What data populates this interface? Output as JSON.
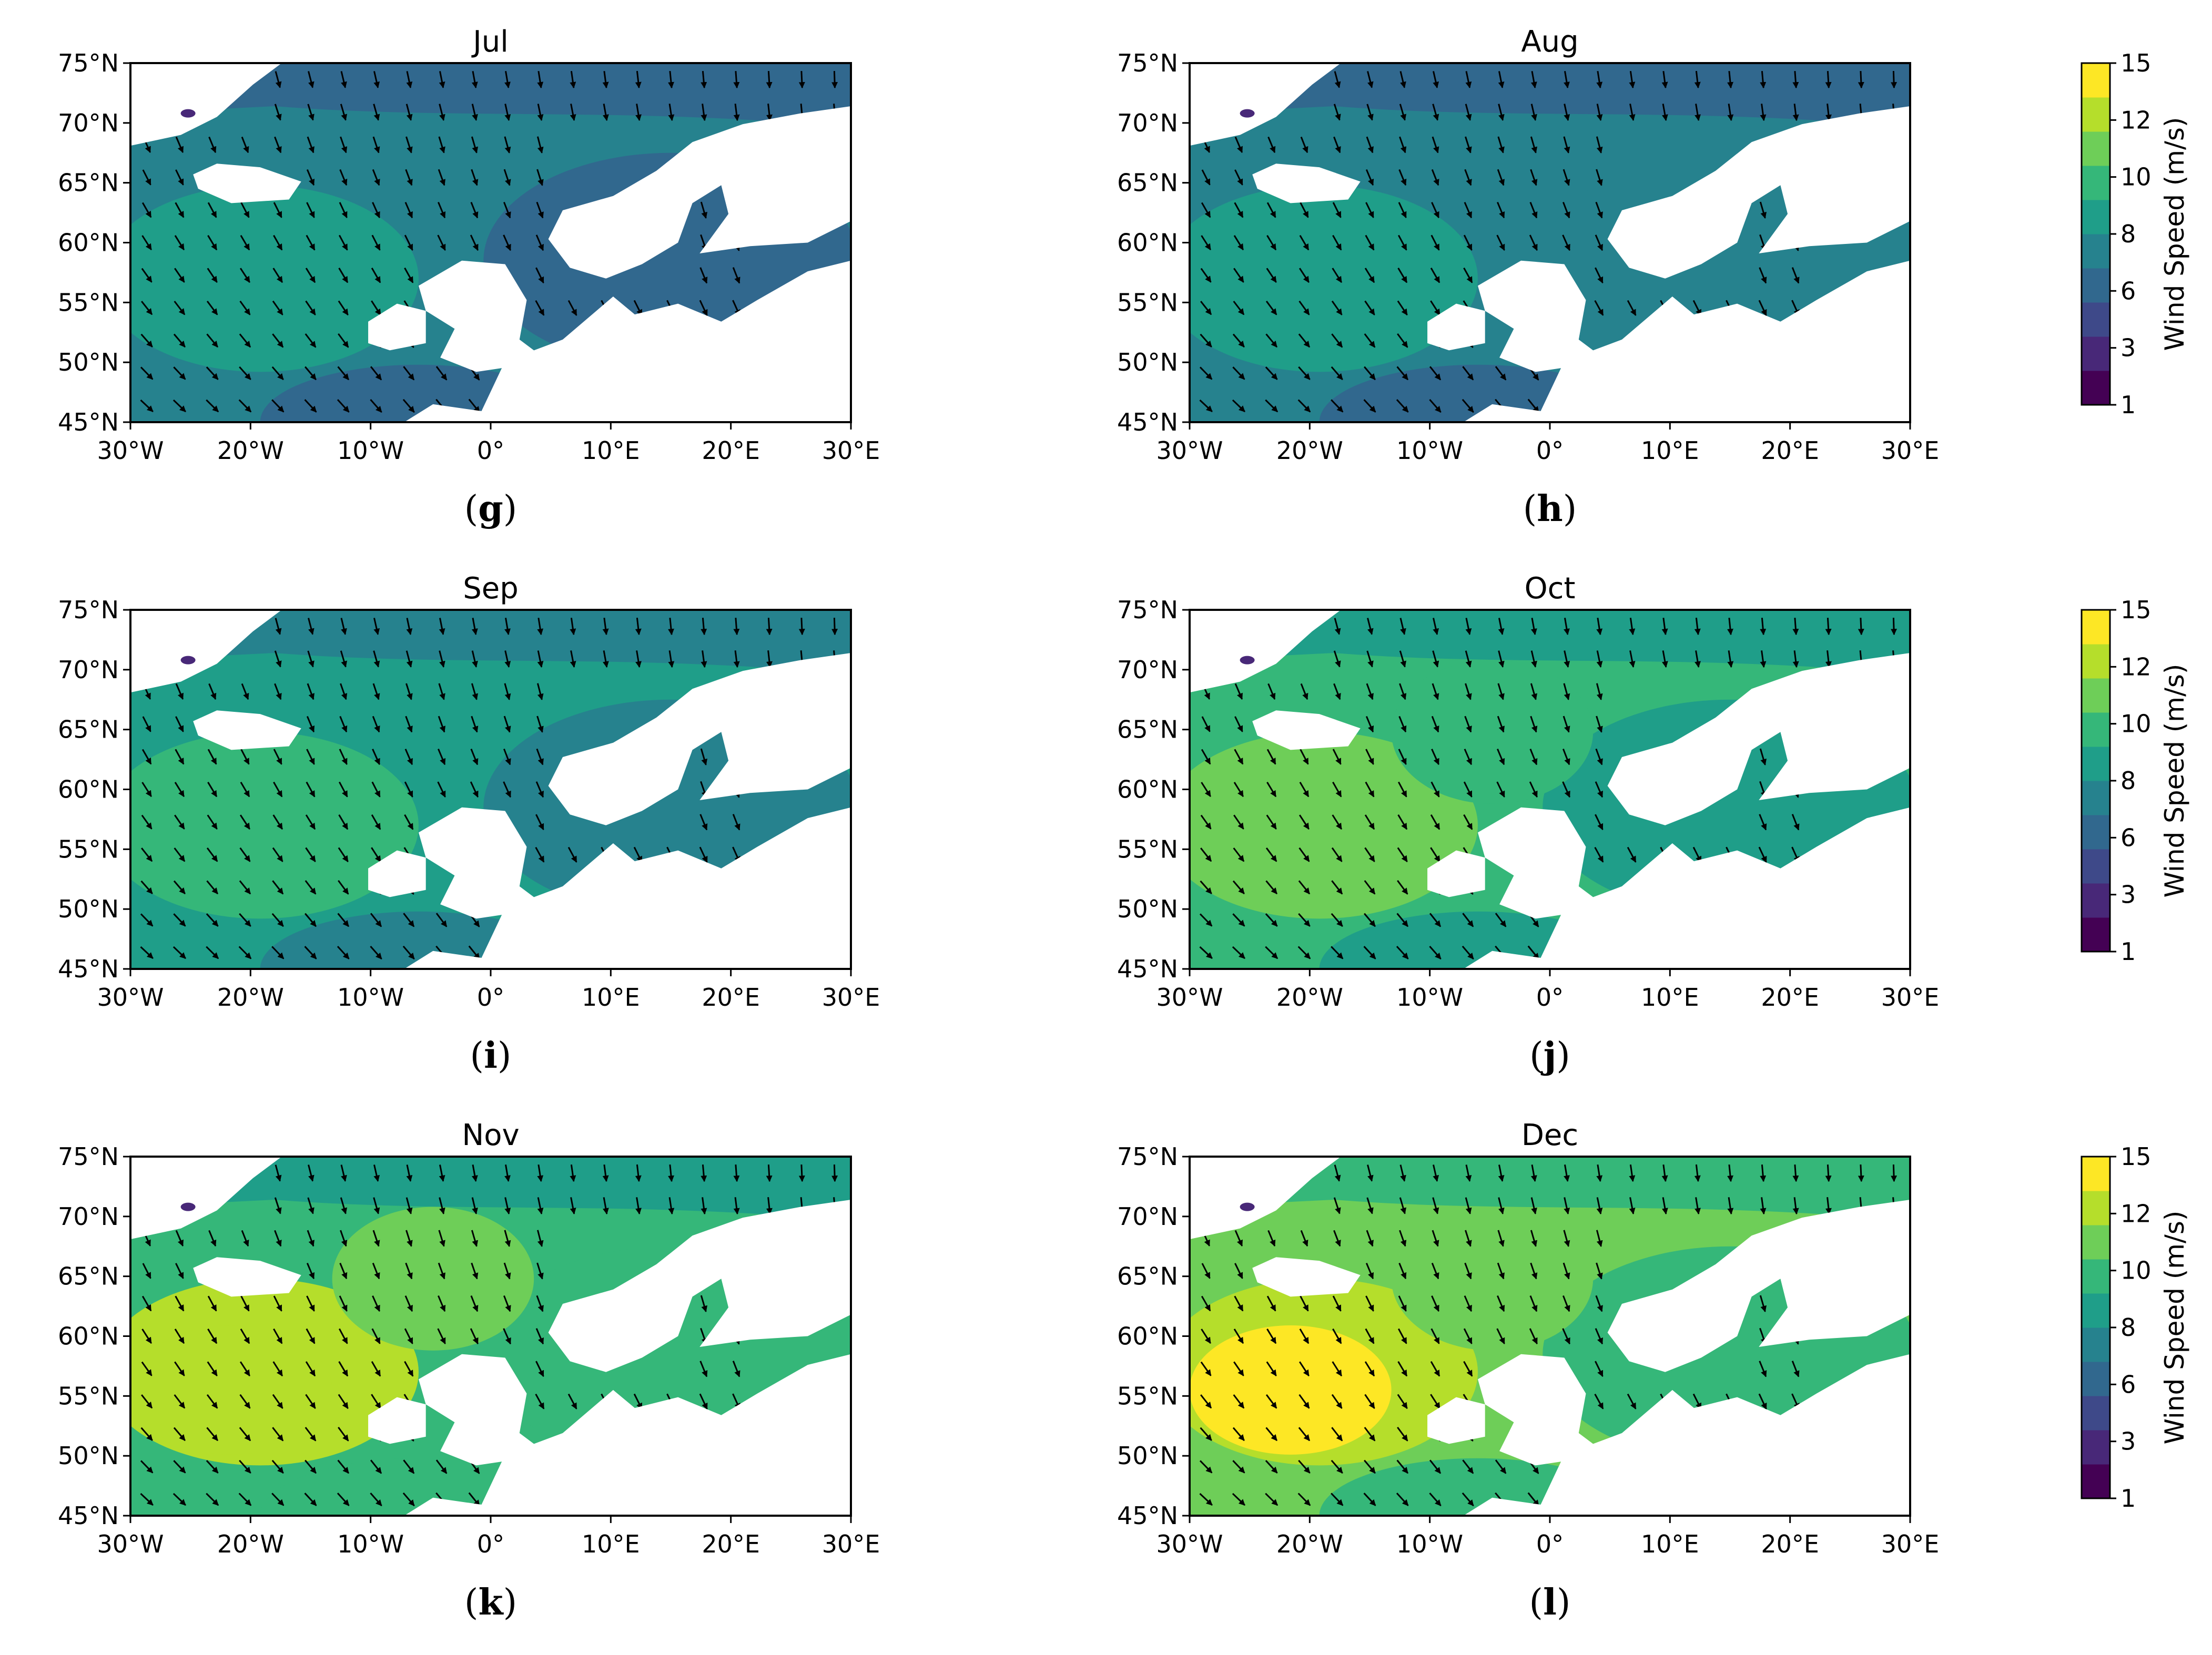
{
  "figure": {
    "panels": [
      {
        "id": "g",
        "title": "Jul",
        "letter": "g",
        "paren_open": "(",
        "paren_close": ")",
        "level": 7.2,
        "hot": 0
      },
      {
        "id": "h",
        "title": "Aug",
        "letter": "h",
        "paren_open": "(",
        "paren_close": ")",
        "level": 7.6,
        "hot": 0
      },
      {
        "id": "i",
        "title": "Sep",
        "letter": "i",
        "paren_open": "(",
        "paren_close": ")",
        "level": 8.9,
        "hot": 0.5
      },
      {
        "id": "j",
        "title": "Oct",
        "letter": "j",
        "paren_open": "(",
        "paren_close": ")",
        "level": 10.2,
        "hot": 1
      },
      {
        "id": "k",
        "title": "Nov",
        "letter": "k",
        "paren_open": "(",
        "paren_close": ")",
        "level": 11.0,
        "hot": 2
      },
      {
        "id": "l",
        "title": "Dec",
        "letter": "l",
        "paren_open": "(",
        "paren_close": ")",
        "level": 11.4,
        "hot": 3
      }
    ],
    "lat_ticks": [
      "75°N",
      "70°N",
      "65°N",
      "60°N",
      "55°N",
      "50°N",
      "45°N"
    ],
    "lon_ticks": [
      "30°W",
      "20°W",
      "10°W",
      "0°",
      "10°E",
      "20°E",
      "30°E"
    ],
    "colorbar": {
      "label": "Wind Speed (m/s)",
      "ticks": [
        "15",
        "12",
        "10",
        "8",
        "6",
        "3",
        "1"
      ],
      "colors": [
        "#440154",
        "#482878",
        "#3e4989",
        "#31688e",
        "#26828e",
        "#1f9e89",
        "#35b779",
        "#6ece58",
        "#b5de2b",
        "#fde725"
      ]
    }
  },
  "chart_data": [
    {
      "type": "heatmap",
      "title": "Jul",
      "xlabel": "",
      "ylabel": "",
      "xlim": [
        -30,
        30
      ],
      "ylim": [
        45,
        75
      ],
      "colorbar_label": "Wind Speed (m/s)",
      "colorbar_range": [
        1,
        15
      ]
    },
    {
      "type": "heatmap",
      "title": "Aug",
      "xlabel": "",
      "ylabel": "",
      "xlim": [
        -30,
        30
      ],
      "ylim": [
        45,
        75
      ],
      "colorbar_label": "Wind Speed (m/s)",
      "colorbar_range": [
        1,
        15
      ]
    },
    {
      "type": "heatmap",
      "title": "Sep",
      "xlabel": "",
      "ylabel": "",
      "xlim": [
        -30,
        30
      ],
      "ylim": [
        45,
        75
      ],
      "colorbar_label": "Wind Speed (m/s)",
      "colorbar_range": [
        1,
        15
      ]
    },
    {
      "type": "heatmap",
      "title": "Oct",
      "xlabel": "",
      "ylabel": "",
      "xlim": [
        -30,
        30
      ],
      "ylim": [
        45,
        75
      ],
      "colorbar_label": "Wind Speed (m/s)",
      "colorbar_range": [
        1,
        15
      ]
    },
    {
      "type": "heatmap",
      "title": "Nov",
      "xlabel": "",
      "ylabel": "",
      "xlim": [
        -30,
        30
      ],
      "ylim": [
        45,
        75
      ],
      "colorbar_label": "Wind Speed (m/s)",
      "colorbar_range": [
        1,
        15
      ]
    },
    {
      "type": "heatmap",
      "title": "Dec",
      "xlabel": "",
      "ylabel": "",
      "xlim": [
        -30,
        30
      ],
      "ylim": [
        45,
        75
      ],
      "colorbar_label": "Wind Speed (m/s)",
      "colorbar_range": [
        1,
        15
      ]
    }
  ]
}
